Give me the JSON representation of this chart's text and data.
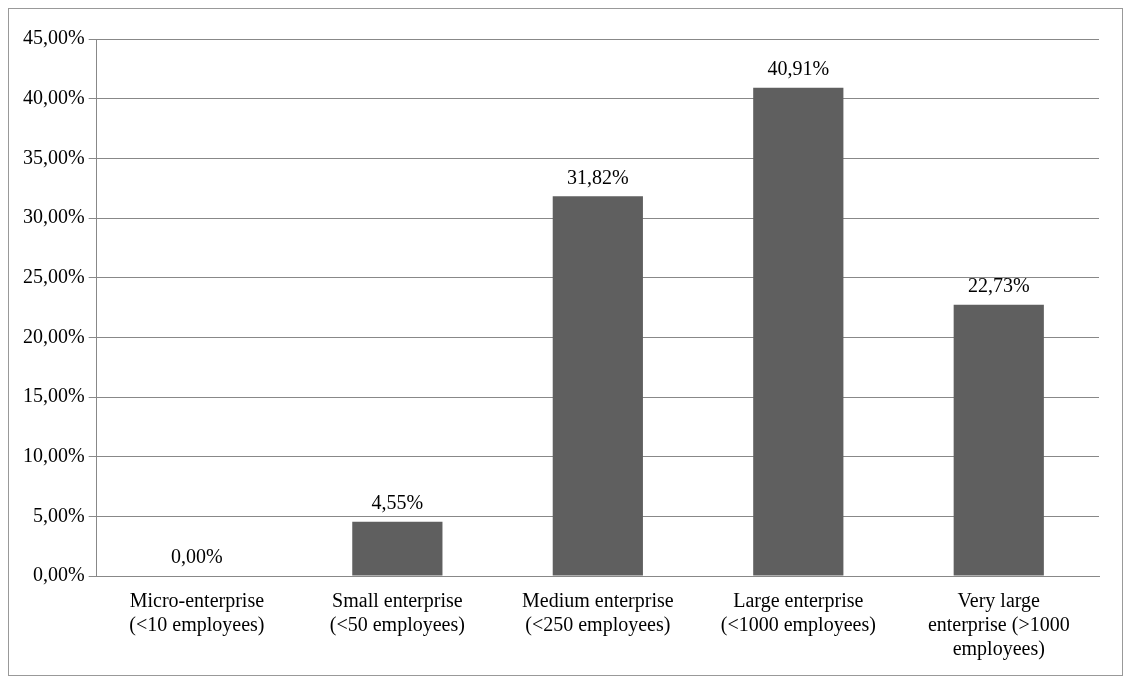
{
  "chart_data": {
    "type": "bar",
    "categories": [
      "Micro-enterprise (<10 employees)",
      "Small enterprise (<50 employees)",
      "Medium enterprise (<250 employees)",
      "Large enterprise (<1000 employees)",
      "Very large enterprise (>1000 employees)"
    ],
    "values": [
      0,
      4.55,
      31.82,
      40.91,
      22.73
    ],
    "value_labels": [
      "0,00%",
      "4,55%",
      "31,82%",
      "40,91%",
      "22,73%"
    ],
    "color": "#5f5f5f",
    "ylim": [
      0,
      45
    ],
    "yticks": [
      {
        "value": 0,
        "label": "0,00%"
      },
      {
        "value": 5,
        "label": "5,00%"
      },
      {
        "value": 10,
        "label": "10,00%"
      },
      {
        "value": 15,
        "label": "15,00%"
      },
      {
        "value": 20,
        "label": "20,00%"
      },
      {
        "value": 25,
        "label": "25,00%"
      },
      {
        "value": 30,
        "label": "30,00%"
      },
      {
        "value": 35,
        "label": "35,00%"
      },
      {
        "value": 40,
        "label": "40,00%"
      },
      {
        "value": 45,
        "label": "45,00%"
      }
    ],
    "grid": "y",
    "legend": false
  }
}
